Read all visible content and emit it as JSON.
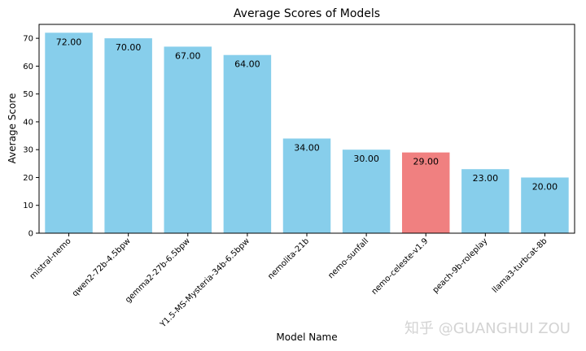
{
  "chart_data": {
    "type": "bar",
    "title": "Average Scores of Models",
    "xlabel": "Model Name",
    "ylabel": "Average Score",
    "ylim": [
      0,
      75
    ],
    "yticks": [
      0,
      10,
      20,
      30,
      40,
      50,
      60,
      70
    ],
    "grid": false,
    "categories": [
      "mistral-nemo",
      "qwen2-72b-4.5bpw",
      "gemma2-27b-6.5bpw",
      "Y1.5-MS-Mysteria-34b-6.5bpw",
      "nemolita-21b",
      "nemo-sunfall",
      "nemo-celeste-v1.9",
      "peach-9b-roleplay",
      "llama3-turbcat-8b"
    ],
    "values": [
      72,
      70,
      67,
      64,
      34,
      30,
      29,
      23,
      20
    ],
    "value_labels": [
      "72.00",
      "70.00",
      "67.00",
      "64.00",
      "34.00",
      "30.00",
      "29.00",
      "23.00",
      "20.00"
    ],
    "bar_colors": [
      "#87ceeb",
      "#87ceeb",
      "#87ceeb",
      "#87ceeb",
      "#87ceeb",
      "#87ceeb",
      "#f08080",
      "#87ceeb",
      "#87ceeb"
    ]
  },
  "watermark": "知乎 @GUANGHUI ZOU"
}
